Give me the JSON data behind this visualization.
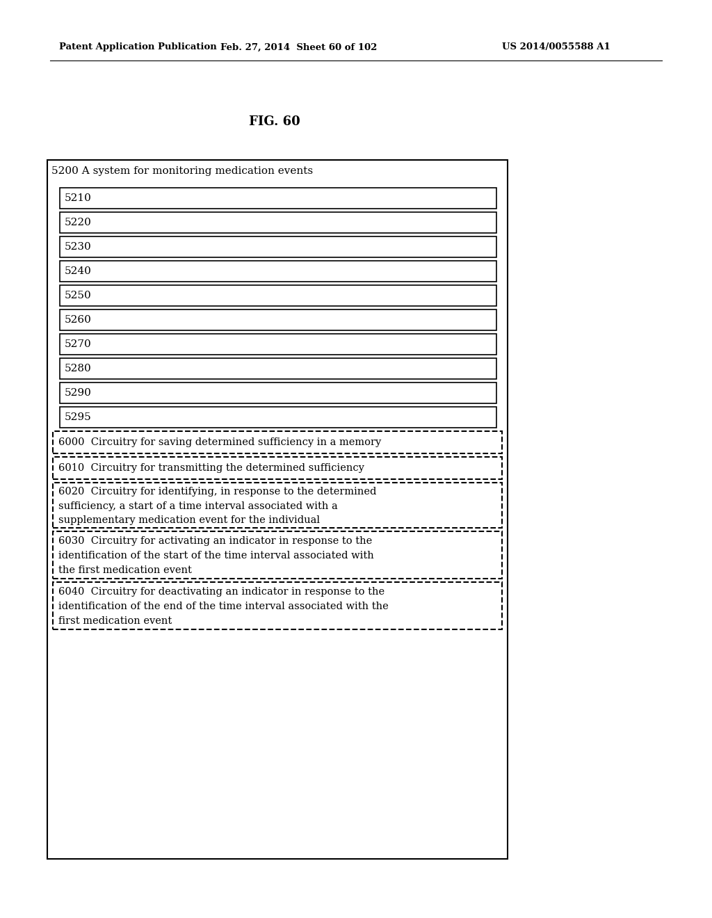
{
  "fig_label": "FIG. 60",
  "header_left": "Patent Application Publication",
  "header_center": "Feb. 27, 2014  Sheet 60 of 102",
  "header_right": "US 2014/0055588 A1",
  "outer_box_label": "5200 A system for monitoring medication events",
  "solid_boxes": [
    "5210",
    "5220",
    "5230",
    "5240",
    "5250",
    "5260",
    "5270",
    "5280",
    "5290",
    "5295"
  ],
  "dashed_boxes": [
    "6000  Circuitry for saving determined sufficiency in a memory",
    "6010  Circuitry for transmitting the determined sufficiency",
    "6020  Circuitry for identifying, in response to the determined\nsufficiency, a start of a time interval associated with a\nsupplementary medication event for the individual",
    "6030  Circuitry for activating an indicator in response to the\nidentification of the start of the time interval associated with\nthe first medication event",
    "6040  Circuitry for deactivating an indicator in response to the\nidentification of the end of the time interval associated with the\nfirst medication event"
  ],
  "background_color": "#ffffff",
  "box_edge_color": "#000000",
  "text_color": "#000000"
}
